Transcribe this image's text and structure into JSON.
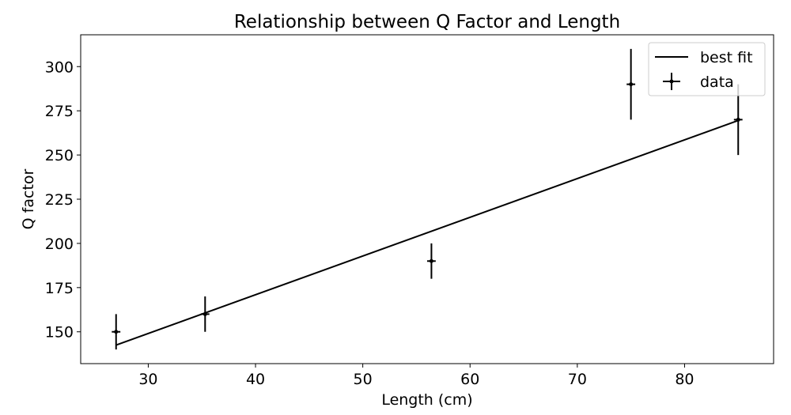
{
  "chart_data": {
    "type": "scatter",
    "title": "Relationship between Q Factor and Length",
    "xlabel": "Length (cm)",
    "ylabel": "Q factor",
    "xlim": [
      23.7,
      88.3
    ],
    "ylim": [
      132,
      318
    ],
    "x_ticks": [
      30,
      40,
      50,
      60,
      70,
      80
    ],
    "y_ticks": [
      150,
      175,
      200,
      225,
      250,
      275,
      300
    ],
    "grid": false,
    "legend_position": "top-right",
    "series": [
      {
        "name": "best fit",
        "kind": "line",
        "color": "#000000",
        "x": [
          27,
          85
        ],
        "y": [
          142.5,
          269.5
        ]
      },
      {
        "name": "data",
        "kind": "errorbar",
        "color": "#000000",
        "x": [
          27.0,
          35.3,
          56.4,
          75.0,
          85.0
        ],
        "y": [
          150,
          160,
          190,
          290,
          270
        ],
        "yerr": [
          10,
          10,
          10,
          20,
          20
        ],
        "xerr": [
          0.4,
          0.4,
          0.4,
          0.4,
          0.4
        ]
      }
    ]
  }
}
